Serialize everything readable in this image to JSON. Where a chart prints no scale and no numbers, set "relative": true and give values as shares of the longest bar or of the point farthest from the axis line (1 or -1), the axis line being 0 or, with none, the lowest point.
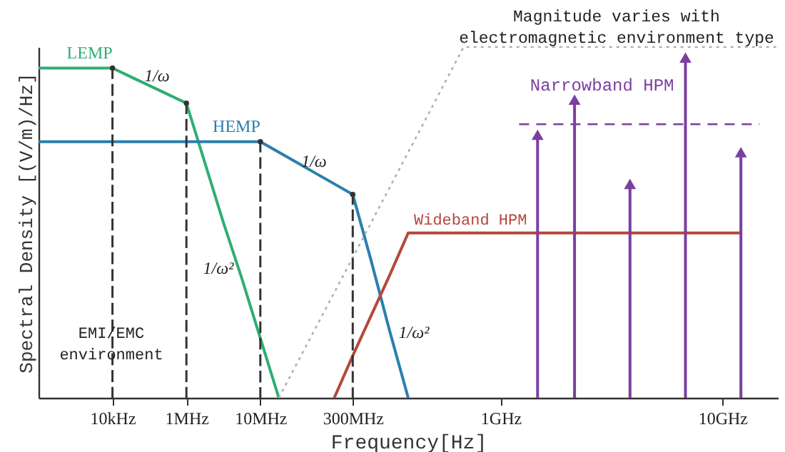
{
  "chart_data": {
    "type": "line",
    "relative": true,
    "xlabel": "Frequency[Hz]",
    "ylabel": "Spectral Density [(V/m)/Hz]",
    "categories": [
      null,
      null,
      null,
      null,
      "10kHz",
      null,
      null,
      null,
      "1MHz",
      null,
      null,
      null,
      "10MHz",
      null,
      null,
      null,
      null,
      "300MHz",
      null,
      null,
      null,
      null,
      null,
      null,
      null,
      "1GHz",
      null,
      null,
      null,
      null,
      null,
      null,
      null,
      null,
      null,
      null,
      null,
      "10GHz",
      null,
      null,
      null
    ],
    "series": [
      {
        "name": "LEMP",
        "color": "#2fae72",
        "values": [
          0.94,
          0.94,
          0.94,
          0.94,
          0.94,
          0.915,
          0.89,
          0.865,
          0.84,
          0.67,
          0.5,
          0.34,
          0.17,
          0,
          null,
          null,
          null,
          null,
          null,
          null,
          null,
          null,
          null,
          null,
          null,
          null,
          null,
          null,
          null,
          null,
          null,
          null,
          null,
          null,
          null,
          null,
          null,
          null,
          null,
          null,
          null
        ]
      },
      {
        "name": "HEMP",
        "color": "#2a7fae",
        "values": [
          0.73,
          0.73,
          0.73,
          0.73,
          0.73,
          0.73,
          0.73,
          0.73,
          0.73,
          0.73,
          0.73,
          0.73,
          0.73,
          0.7,
          0.67,
          0.64,
          0.61,
          0.58,
          0.39,
          0.19,
          0,
          null,
          null,
          null,
          null,
          null,
          null,
          null,
          null,
          null,
          null,
          null,
          null,
          null,
          null,
          null,
          null,
          null,
          null,
          null,
          null
        ]
      },
      {
        "name": "Wideband HPM",
        "color": "#b5483b",
        "values": [
          null,
          null,
          null,
          null,
          null,
          null,
          null,
          null,
          null,
          null,
          null,
          null,
          null,
          null,
          null,
          null,
          0,
          0.12,
          0.235,
          0.35,
          0.47,
          0.47,
          0.47,
          0.47,
          0.47,
          0.47,
          0.47,
          0.47,
          0.47,
          0.47,
          0.47,
          0.47,
          0.47,
          0.47,
          0.47,
          0.47,
          0.47,
          0.47,
          0.47,
          null,
          null
        ]
      },
      {
        "name": "Narrowband HPM",
        "type": "lollipop",
        "marker": "triangle",
        "color": "#7b3fa0",
        "values": [
          null,
          null,
          null,
          null,
          null,
          null,
          null,
          null,
          null,
          null,
          null,
          null,
          null,
          null,
          null,
          null,
          null,
          null,
          null,
          null,
          null,
          null,
          null,
          null,
          null,
          null,
          null,
          0.75,
          null,
          0.85,
          null,
          null,
          0.61,
          null,
          null,
          0.97,
          null,
          null,
          0.7,
          null,
          null
        ]
      },
      {
        "line_style": "dashed",
        "color": "#7b3fa0",
        "values": [
          null,
          null,
          null,
          null,
          null,
          null,
          null,
          null,
          null,
          null,
          null,
          null,
          null,
          null,
          null,
          null,
          null,
          null,
          null,
          null,
          null,
          null,
          null,
          null,
          null,
          null,
          0.78,
          0.78,
          0.78,
          0.78,
          0.78,
          0.78,
          0.78,
          0.78,
          0.78,
          0.78,
          0.78,
          0.78,
          0.78,
          0.78,
          null
        ]
      },
      {
        "line_style": "dotted",
        "color": "#b0b0b0",
        "values": [
          null,
          null,
          null,
          null,
          null,
          null,
          null,
          null,
          null,
          null,
          null,
          null,
          null,
          0,
          0.1,
          0.2,
          0.3,
          0.4,
          0.5,
          0.6,
          0.7,
          0.8,
          0.9,
          1,
          1,
          1,
          1,
          1,
          1,
          1,
          1,
          1,
          1,
          1,
          1,
          1,
          1,
          1,
          1,
          1,
          1
        ]
      },
      {
        "type": "lollipop",
        "line_style": "dashed",
        "marker": "circle",
        "color": "#333333",
        "values": [
          null,
          null,
          null,
          null,
          0.94,
          null,
          null,
          null,
          0.84,
          null,
          null,
          null,
          0.73,
          null,
          null,
          null,
          null,
          0.58,
          null,
          null,
          null,
          null,
          null,
          null,
          null,
          null,
          null,
          null,
          null,
          null,
          null,
          null,
          null,
          null,
          null,
          null,
          null,
          null,
          null,
          null,
          null
        ]
      }
    ],
    "annotations": [
      "1/ω",
      "1/ω",
      "1/ω²",
      "1/ω²",
      "EMI/EMC\nenvironment",
      "Magnitude varies with\nelectromagnetic environment type"
    ]
  }
}
